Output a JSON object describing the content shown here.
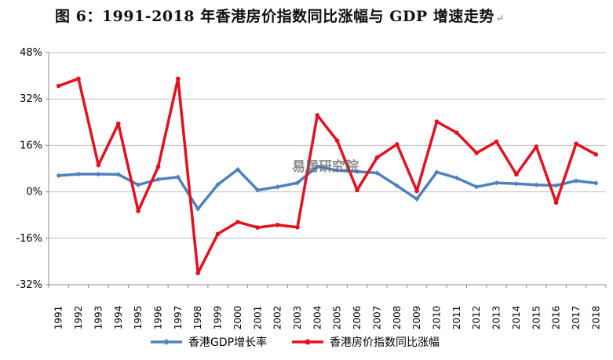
{
  "title": "图 6：1991-2018 年香港房价指数同比涨幅与 GDP 增速走势",
  "return_mark": "↵",
  "watermark": "易居研究院",
  "chart_data": {
    "type": "line",
    "title": "图 6：1991-2018 年香港房价指数同比涨幅与 GDP 增速走势",
    "xlabel": "",
    "ylabel": "",
    "ylim": [
      -32,
      48
    ],
    "yticks": [
      -32,
      -16,
      0,
      16,
      32,
      48
    ],
    "ytick_labels": [
      "-32%",
      "-16%",
      "0%",
      "16%",
      "32%",
      "48%"
    ],
    "categories": [
      "1991",
      "1992",
      "1993",
      "1994",
      "1995",
      "1996",
      "1997",
      "1998",
      "1999",
      "2000",
      "2001",
      "2002",
      "2003",
      "2004",
      "2005",
      "2006",
      "2007",
      "2008",
      "2009",
      "2010",
      "2011",
      "2012",
      "2013",
      "2014",
      "2015",
      "2016",
      "2017",
      "2018"
    ],
    "grid": "horizontal",
    "legend_position": "bottom",
    "series": [
      {
        "name": "香港GDP增长率",
        "color": "#4f81bd",
        "marker": "diamond",
        "values": [
          5.6,
          6.1,
          6.1,
          6.0,
          2.4,
          4.3,
          5.1,
          -5.9,
          2.5,
          7.7,
          0.6,
          1.7,
          3.1,
          8.7,
          7.4,
          7.0,
          6.5,
          2.1,
          -2.5,
          6.8,
          4.8,
          1.7,
          3.1,
          2.8,
          2.4,
          2.2,
          3.8,
          3.0
        ]
      },
      {
        "name": "香港房价指数同比涨幅",
        "color": "#e4101f",
        "marker": "circle",
        "values": [
          36.5,
          39.0,
          9.2,
          23.5,
          -6.6,
          8.6,
          39.0,
          -28.0,
          -14.5,
          -10.4,
          -12.3,
          -11.4,
          -12.2,
          26.4,
          17.6,
          0.6,
          11.8,
          16.4,
          0.3,
          24.2,
          20.4,
          13.4,
          17.3,
          6.0,
          15.6,
          -3.7,
          16.6,
          12.9
        ]
      }
    ]
  }
}
